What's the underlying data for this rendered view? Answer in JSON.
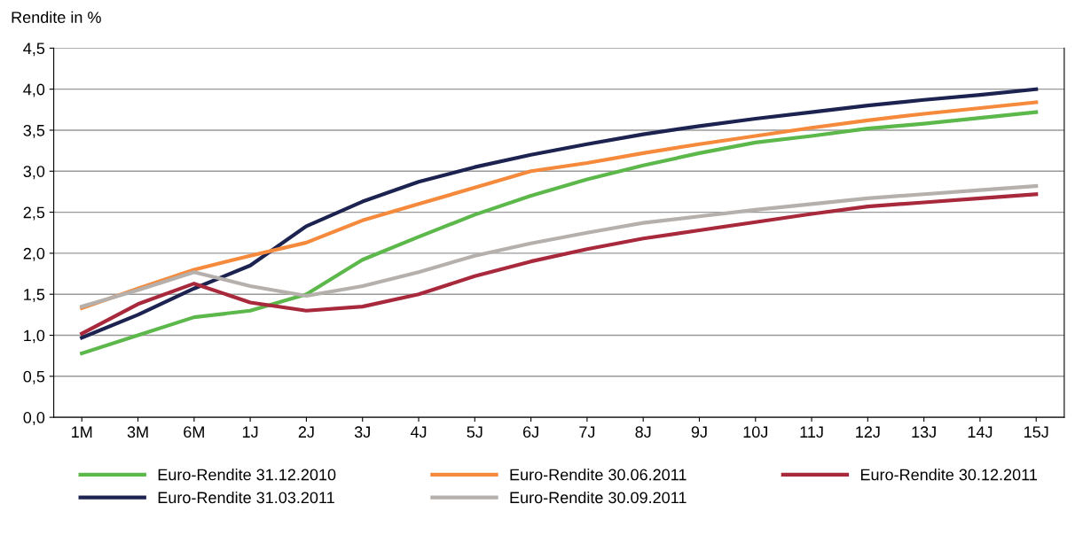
{
  "chart_data": {
    "type": "line",
    "ylabel": "Rendite in %",
    "categories": [
      "1M",
      "3M",
      "6M",
      "1J",
      "2J",
      "3J",
      "4J",
      "5J",
      "6J",
      "7J",
      "8J",
      "9J",
      "10J",
      "11J",
      "12J",
      "13J",
      "14J",
      "15J"
    ],
    "series": [
      {
        "name": "Euro-Rendite 31.12.2010",
        "color": "#5cb84a",
        "values": [
          0.78,
          1.0,
          1.22,
          1.3,
          1.5,
          1.92,
          2.2,
          2.47,
          2.7,
          2.9,
          3.07,
          3.22,
          3.35,
          3.43,
          3.52,
          3.58,
          3.65,
          3.72
        ]
      },
      {
        "name": "Euro-Rendite 31.03.2011",
        "color": "#1c2350",
        "values": [
          0.97,
          1.25,
          1.57,
          1.85,
          2.33,
          2.63,
          2.87,
          3.05,
          3.2,
          3.33,
          3.45,
          3.55,
          3.64,
          3.72,
          3.8,
          3.87,
          3.93,
          4.0
        ]
      },
      {
        "name": "Euro-Rendite 30.06.2011",
        "color": "#f58a3c",
        "values": [
          1.33,
          1.57,
          1.8,
          1.97,
          2.13,
          2.4,
          2.6,
          2.8,
          3.0,
          3.1,
          3.22,
          3.33,
          3.43,
          3.53,
          3.62,
          3.7,
          3.77,
          3.84
        ]
      },
      {
        "name": "Euro-Rendite 30.09.2011",
        "color": "#b5b0ac",
        "values": [
          1.35,
          1.55,
          1.77,
          1.6,
          1.48,
          1.6,
          1.77,
          1.97,
          2.12,
          2.25,
          2.37,
          2.45,
          2.53,
          2.6,
          2.67,
          2.72,
          2.77,
          2.82
        ]
      },
      {
        "name": "Euro-Rendite 30.12.2011",
        "color": "#a8283c",
        "values": [
          1.02,
          1.38,
          1.63,
          1.4,
          1.3,
          1.35,
          1.5,
          1.72,
          1.9,
          2.05,
          2.18,
          2.28,
          2.38,
          2.48,
          2.57,
          2.62,
          2.67,
          2.72
        ]
      }
    ],
    "ylim": [
      0,
      4.5
    ],
    "yticks": [
      {
        "value": 0,
        "label": "0,0"
      },
      {
        "value": 0.5,
        "label": "0,5"
      },
      {
        "value": 1,
        "label": "1,0"
      },
      {
        "value": 1.5,
        "label": "1,5"
      },
      {
        "value": 2,
        "label": "2,0"
      },
      {
        "value": 2.5,
        "label": "2,5"
      },
      {
        "value": 3,
        "label": "3,0"
      },
      {
        "value": 3.5,
        "label": "3,5"
      },
      {
        "value": 4,
        "label": "4,0"
      },
      {
        "value": 4.5,
        "label": "4,5"
      }
    ],
    "grid": "y",
    "legend": "bottom",
    "marker": "none",
    "line_style": "solid"
  }
}
